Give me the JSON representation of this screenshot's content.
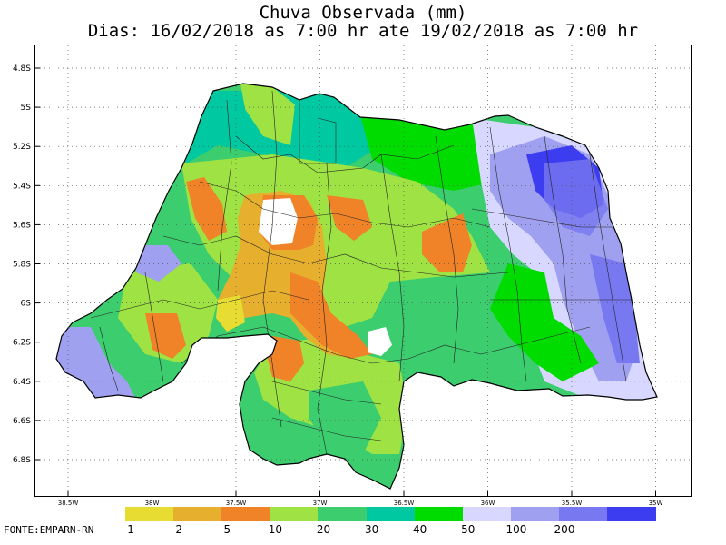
{
  "title": {
    "line1": "Chuva Observada (mm)",
    "line2": "Dias: 16/02/2018 as 7:00 hr ate 19/02/2018 as 7:00 hr"
  },
  "axes": {
    "lat_ticks": [
      "4.8S",
      "5S",
      "5.2S",
      "5.4S",
      "5.6S",
      "5.8S",
      "6S",
      "6.2S",
      "6.4S",
      "6.6S",
      "6.8S"
    ],
    "lon_ticks": [
      "38.5W",
      "38W",
      "37.5W",
      "37W",
      "36.5W",
      "36W",
      "35.5W",
      "35W"
    ],
    "grid": true
  },
  "legend": {
    "colors": [
      "#e7dc32",
      "#e6af2d",
      "#f08228",
      "#9ee343",
      "#3ccd6e",
      "#00c8a0",
      "#00dc00",
      "#d7d7ff",
      "#a0a0f0",
      "#7878f0",
      "#3c3cf0"
    ],
    "labels": [
      "1",
      "2",
      "5",
      "10",
      "20",
      "30",
      "40",
      "50",
      "100",
      "200"
    ]
  },
  "source": "FONTE:EMPARN-RN"
}
